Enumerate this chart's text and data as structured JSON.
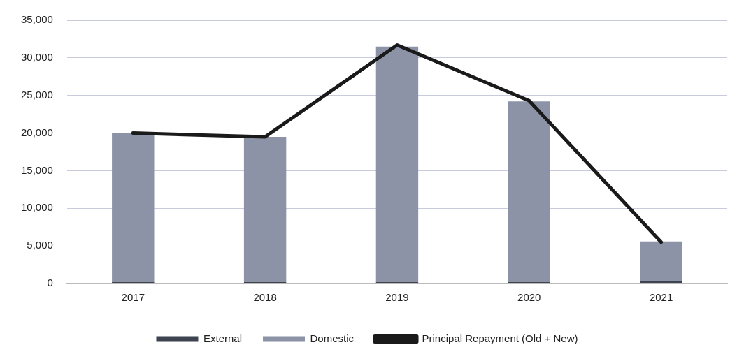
{
  "chart_data": {
    "type": "bar",
    "stacked": true,
    "categories": [
      "2017",
      "2018",
      "2019",
      "2020",
      "2021"
    ],
    "series": [
      {
        "name": "External",
        "color": "#3d4450",
        "values": [
          200,
          200,
          200,
          200,
          300
        ]
      },
      {
        "name": "Domestic",
        "color": "#8c93a6",
        "values": [
          19800,
          19300,
          31300,
          24000,
          5300
        ]
      },
      {
        "name": "Principal Repayment (Old + New)",
        "type": "line",
        "color": "#1a1a1a",
        "values": [
          20000,
          19500,
          31700,
          24300,
          5500
        ]
      }
    ],
    "ylim": [
      0,
      35000
    ],
    "yticks": [
      0,
      {
        "value": 5000,
        "label": "5,000"
      },
      {
        "value": 10000,
        "label": "10,000"
      },
      {
        "value": 15000,
        "label": "15,000"
      },
      {
        "value": 20000,
        "label": "20,000"
      },
      {
        "value": 25000,
        "label": "25,000"
      },
      {
        "value": 30000,
        "label": "30,000"
      },
      {
        "value": 35000,
        "label": "35,000"
      }
    ],
    "grid": "y",
    "legend": "bottom",
    "marker": "none"
  }
}
